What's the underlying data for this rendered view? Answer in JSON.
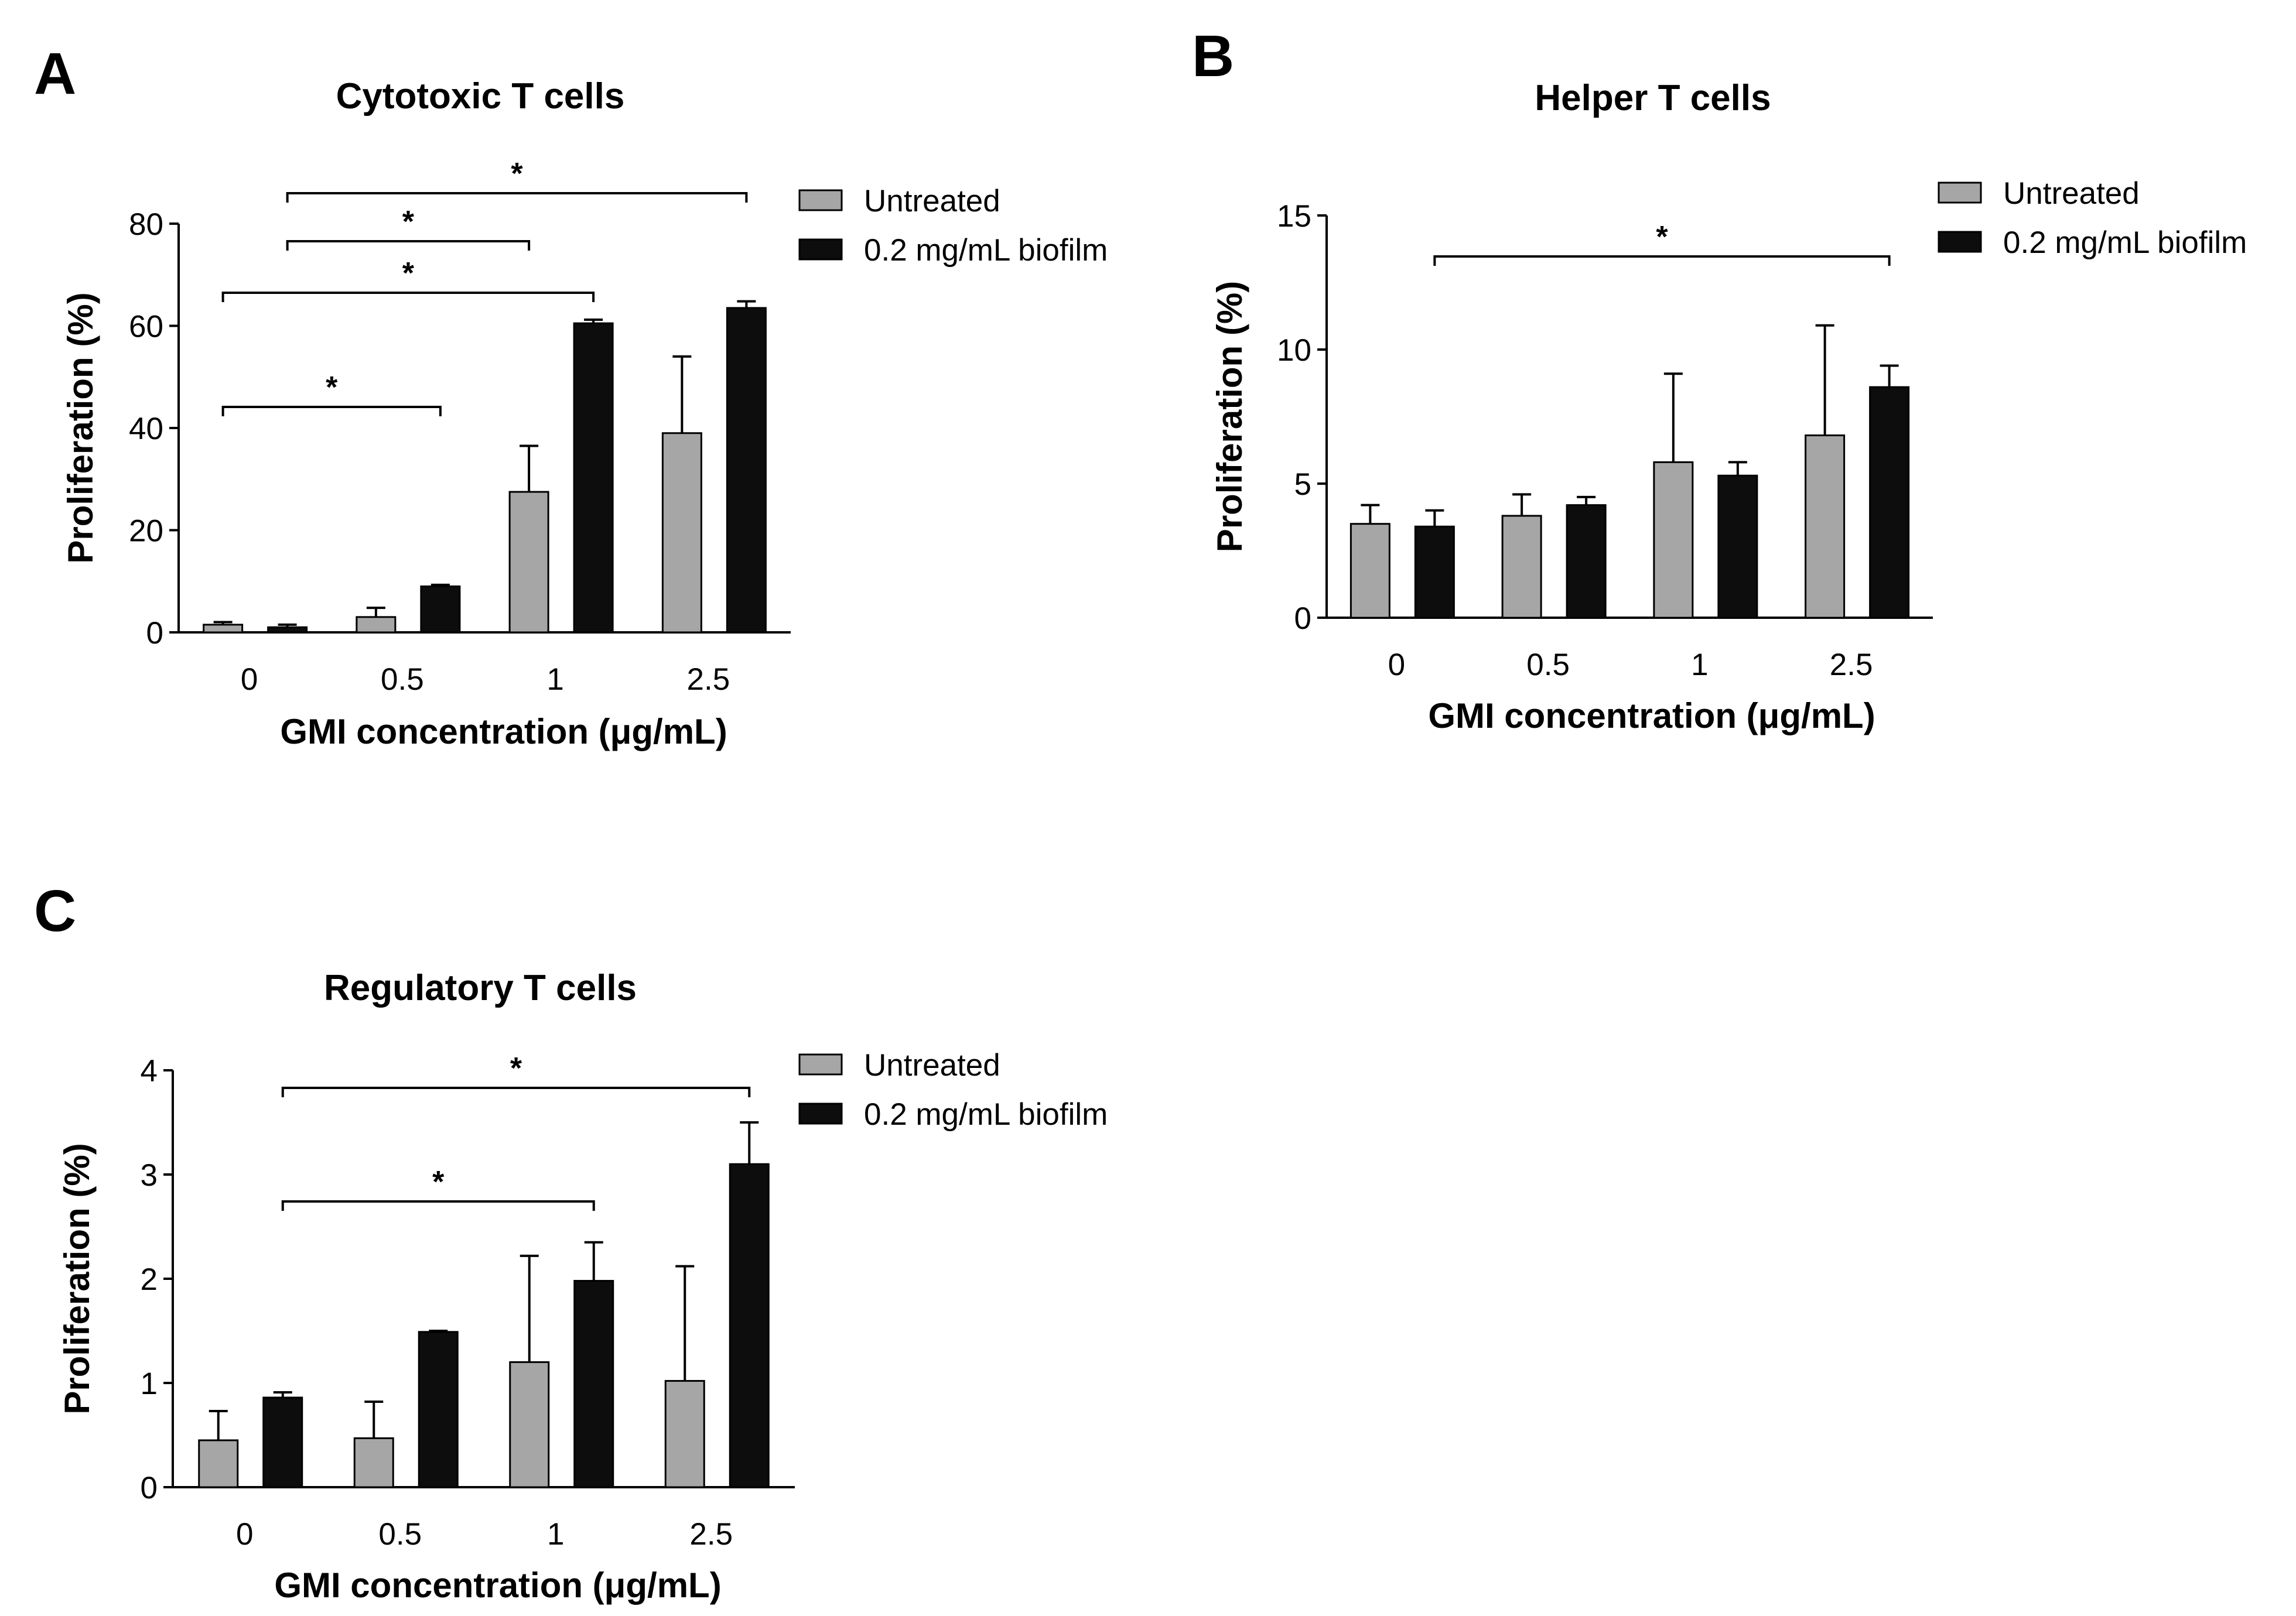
{
  "figure": {
    "colors": {
      "untreated": "#a6a6a6",
      "biofilm": "#0d0d0d",
      "axis": "#000000"
    }
  },
  "chart_data": [
    {
      "panel": "A",
      "type": "bar",
      "title": "Cytotoxic T cells",
      "xlabel": "GMI concentration (μg/mL)",
      "ylabel": "Proliferation (%)",
      "categories": [
        "0",
        "0.5",
        "1",
        "2.5"
      ],
      "ylim": [
        0,
        80
      ],
      "yticks": [
        "0",
        "20",
        "40",
        "60",
        "80"
      ],
      "grid": false,
      "legend": "right",
      "series": [
        {
          "name": "Untreated",
          "values": [
            1.5,
            3.0,
            27.5,
            39.0
          ],
          "errors": [
            0.5,
            1.8,
            9.0,
            15.0
          ]
        },
        {
          "name": "0.2 mg/mL biofilm",
          "values": [
            1.0,
            9.0,
            60.5,
            63.5
          ],
          "errors": [
            0.5,
            0.3,
            0.7,
            1.3
          ]
        }
      ],
      "significance": [
        {
          "from": [
            0,
            1
          ],
          "to": [
            3,
            1
          ],
          "label": "*"
        },
        {
          "from": [
            0,
            1
          ],
          "to": [
            2,
            0
          ],
          "label": "*"
        },
        {
          "from": [
            0,
            0
          ],
          "to": [
            2,
            1
          ],
          "label": "*"
        },
        {
          "from": [
            0,
            0
          ],
          "to": [
            1,
            1
          ],
          "label": "*"
        }
      ]
    },
    {
      "panel": "B",
      "type": "bar",
      "title": "Helper T cells",
      "xlabel": "GMI concentration (μg/mL)",
      "ylabel": "Proliferation (%)",
      "categories": [
        "0",
        "0.5",
        "1",
        "2.5"
      ],
      "ylim": [
        0,
        15
      ],
      "yticks": [
        "0",
        "5",
        "10",
        "15"
      ],
      "grid": false,
      "legend": "right",
      "series": [
        {
          "name": "Untreated",
          "values": [
            3.5,
            3.8,
            5.8,
            6.8
          ],
          "errors": [
            0.7,
            0.8,
            3.3,
            4.1
          ]
        },
        {
          "name": "0.2 mg/mL biofilm",
          "values": [
            3.4,
            4.2,
            5.3,
            8.6
          ],
          "errors": [
            0.6,
            0.3,
            0.5,
            0.8
          ]
        }
      ],
      "significance": [
        {
          "from": [
            0,
            1
          ],
          "to": [
            3,
            1
          ],
          "label": "*"
        }
      ]
    },
    {
      "panel": "C",
      "type": "bar",
      "title": "Regulatory T cells",
      "xlabel": "GMI concentration (μg/mL)",
      "ylabel": "Proliferation (%)",
      "categories": [
        "0",
        "0.5",
        "1",
        "2.5"
      ],
      "ylim": [
        0,
        4
      ],
      "yticks": [
        "0",
        "1",
        "2",
        "3",
        "4"
      ],
      "grid": false,
      "legend": "right",
      "series": [
        {
          "name": "Untreated",
          "values": [
            0.45,
            0.47,
            1.2,
            1.02
          ],
          "errors": [
            0.28,
            0.35,
            1.02,
            1.1
          ]
        },
        {
          "name": "0.2 mg/mL biofilm",
          "values": [
            0.86,
            1.49,
            1.98,
            3.1
          ],
          "errors": [
            0.05,
            0.01,
            0.37,
            0.4
          ]
        }
      ],
      "significance": [
        {
          "from": [
            0,
            1
          ],
          "to": [
            3,
            1
          ],
          "label": "*"
        },
        {
          "from": [
            0,
            1
          ],
          "to": [
            2,
            1
          ],
          "label": "*"
        }
      ]
    }
  ]
}
